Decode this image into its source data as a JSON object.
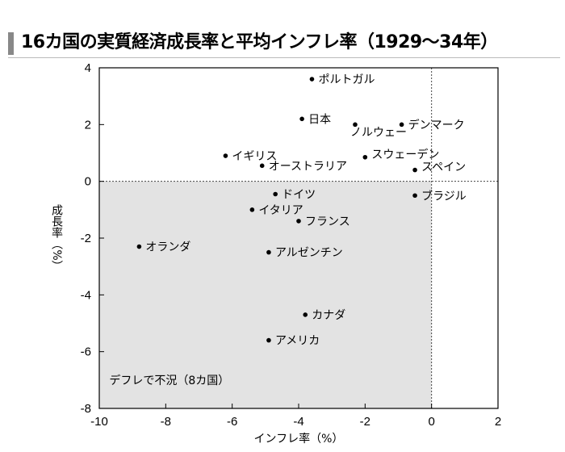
{
  "chart_data": {
    "type": "scatter",
    "title": "16カ国の実質経済成長率と平均インフレ率（1929〜34年）",
    "xlabel": "インフレ率（%）",
    "ylabel": "成長率（%）",
    "xlim": [
      -10,
      2
    ],
    "ylim": [
      -8,
      4
    ],
    "xticks": [
      -10,
      -8,
      -6,
      -4,
      -2,
      0,
      2
    ],
    "yticks": [
      -8,
      -6,
      -4,
      -2,
      0,
      2,
      4
    ],
    "shaded_region_label": "デフレで不況（8カ国）",
    "shaded_color": "#e3e3e3",
    "grid": false,
    "reference_lines": [
      {
        "axis": "x",
        "value": 0,
        "style": "dotted"
      },
      {
        "axis": "y",
        "value": 0,
        "style": "dotted"
      }
    ],
    "points": [
      {
        "label": "ポルトガル",
        "x": -3.6,
        "y": 3.6
      },
      {
        "label": "日本",
        "x": -3.9,
        "y": 2.2
      },
      {
        "label": "ノルウェー",
        "x": -2.3,
        "y": 2.0
      },
      {
        "label": "デンマーク",
        "x": -0.9,
        "y": 2.0
      },
      {
        "label": "イギリス",
        "x": -6.2,
        "y": 0.9
      },
      {
        "label": "スウェーデン",
        "x": -2.0,
        "y": 0.85
      },
      {
        "label": "オーストラリア",
        "x": -5.1,
        "y": 0.55
      },
      {
        "label": "スペイン",
        "x": -0.5,
        "y": 0.4
      },
      {
        "label": "ドイツ",
        "x": -4.7,
        "y": -0.45
      },
      {
        "label": "ブラジル",
        "x": -0.5,
        "y": -0.5
      },
      {
        "label": "イタリア",
        "x": -5.4,
        "y": -1.0
      },
      {
        "label": "フランス",
        "x": -4.0,
        "y": -1.4
      },
      {
        "label": "オランダ",
        "x": -8.8,
        "y": -2.3
      },
      {
        "label": "アルゼンチン",
        "x": -4.9,
        "y": -2.5
      },
      {
        "label": "カナダ",
        "x": -3.8,
        "y": -4.7
      },
      {
        "label": "アメリカ",
        "x": -4.9,
        "y": -5.6
      }
    ]
  }
}
